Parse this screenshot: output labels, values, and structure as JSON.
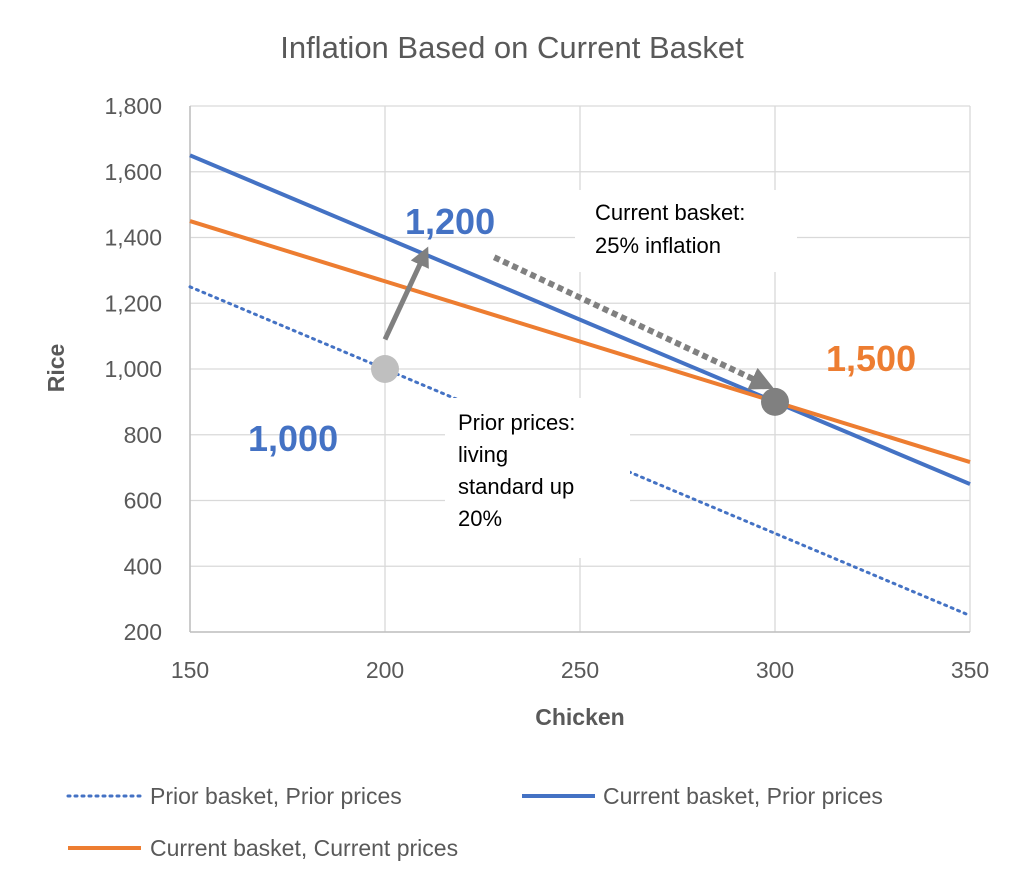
{
  "chart_data": {
    "type": "line",
    "title": "Inflation Based on Current Basket",
    "xlabel": "Chicken",
    "ylabel": "Rice",
    "xlim": [
      150,
      350
    ],
    "ylim": [
      200,
      1800
    ],
    "x_ticks": [
      150,
      200,
      250,
      300,
      350
    ],
    "y_ticks": [
      200,
      400,
      600,
      800,
      1000,
      1200,
      1400,
      1600,
      1800
    ],
    "x_tick_labels": [
      "150",
      "200",
      "250",
      "300",
      "350"
    ],
    "y_tick_labels": [
      "200",
      "400",
      "600",
      "800",
      "1,000",
      "1,200",
      "1,400",
      "1,600",
      "1,800"
    ],
    "grid": true,
    "legend_position": "bottom",
    "series": [
      {
        "name": "Prior basket, Prior prices",
        "style": "dotted",
        "color": "#4472C4",
        "x": [
          150,
          350
        ],
        "y": [
          1250,
          250
        ]
      },
      {
        "name": "Current basket, Prior prices",
        "style": "solid",
        "color": "#4472C4",
        "x": [
          150,
          350
        ],
        "y": [
          1650,
          650
        ]
      },
      {
        "name": "Current basket, Current prices",
        "style": "solid",
        "color": "#ED7D31",
        "x": [
          150,
          350
        ],
        "y": [
          1450,
          717
        ]
      }
    ],
    "points": [
      {
        "name": "prior-basket-point",
        "x": 200,
        "y": 1000,
        "color": "#BFBFBF"
      },
      {
        "name": "current-basket-point",
        "x": 300,
        "y": 900,
        "color": "#808080"
      }
    ],
    "arrows": [
      {
        "name": "solid-arrow",
        "from": [
          200,
          1090
        ],
        "to": [
          210,
          1345
        ],
        "style": "solid",
        "color": "#808080"
      },
      {
        "name": "dashed-arrow",
        "from": [
          228,
          1340
        ],
        "to": [
          297,
          955
        ],
        "style": "dashed",
        "color": "#808080"
      }
    ],
    "annotations": {
      "value_1200": {
        "text": "1,200",
        "color": "#4472C4"
      },
      "value_1000": {
        "text": "1,000",
        "color": "#4472C4"
      },
      "value_1500": {
        "text": "1,500",
        "color": "#ED7D31"
      },
      "current_basket": {
        "lines": [
          "Current basket:",
          "25% inflation"
        ]
      },
      "prior_prices": {
        "lines": [
          "Prior prices:",
          "living",
          "standard up",
          "20%"
        ]
      }
    }
  }
}
